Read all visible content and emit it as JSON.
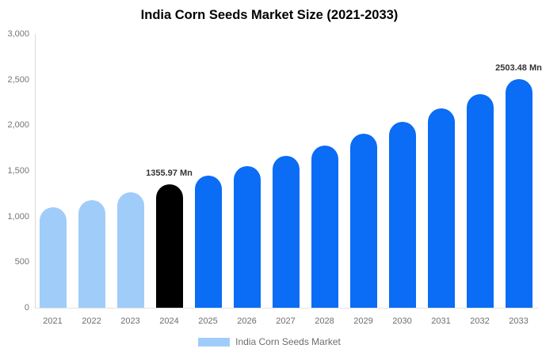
{
  "title": "India Corn Seeds Market Size (2021-2033)",
  "legend": {
    "swatch_color": "#A0CCFA",
    "label": "India Corn Seeds Market"
  },
  "colors": {
    "historical_bar": "#A0CCFA",
    "base_year_bar": "#000000",
    "forecast_bar": "#0B6CF5",
    "axis_line": "#d9d9d9",
    "tick_text": "#757575",
    "annotation_text": "#333333"
  },
  "chart_data": {
    "type": "bar",
    "title": "India Corn Seeds Market Size (2021-2033)",
    "xlabel": "",
    "ylabel": "",
    "unit": "Mn",
    "ylim": [
      0,
      3000
    ],
    "grid": false,
    "legend_position": "bottom",
    "categories": [
      "2021",
      "2022",
      "2023",
      "2024",
      "2025",
      "2026",
      "2027",
      "2028",
      "2029",
      "2030",
      "2031",
      "2032",
      "2033"
    ],
    "values": [
      1105,
      1183,
      1267,
      1355.97,
      1452,
      1554,
      1663,
      1781,
      1906,
      2040,
      2184,
      2338,
      2503.48
    ],
    "point_colors": [
      "#A0CCFA",
      "#A0CCFA",
      "#A0CCFA",
      "#000000",
      "#0B6CF5",
      "#0B6CF5",
      "#0B6CF5",
      "#0B6CF5",
      "#0B6CF5",
      "#0B6CF5",
      "#0B6CF5",
      "#0B6CF5",
      "#0B6CF5"
    ],
    "annotations": [
      {
        "index": 3,
        "text": "1355.97 Mn"
      },
      {
        "index": 12,
        "text": "2503.48 Mn"
      }
    ],
    "yticks": [
      {
        "label": "0",
        "value": 0
      },
      {
        "label": "500",
        "value": 500
      },
      {
        "label": "1,000",
        "value": 1000
      },
      {
        "label": "1,500",
        "value": 1500
      },
      {
        "label": "2,000",
        "value": 2000
      },
      {
        "label": "2,500",
        "value": 2500
      },
      {
        "label": "3,000",
        "value": 3000
      }
    ],
    "series_name": "India Corn Seeds Market"
  }
}
